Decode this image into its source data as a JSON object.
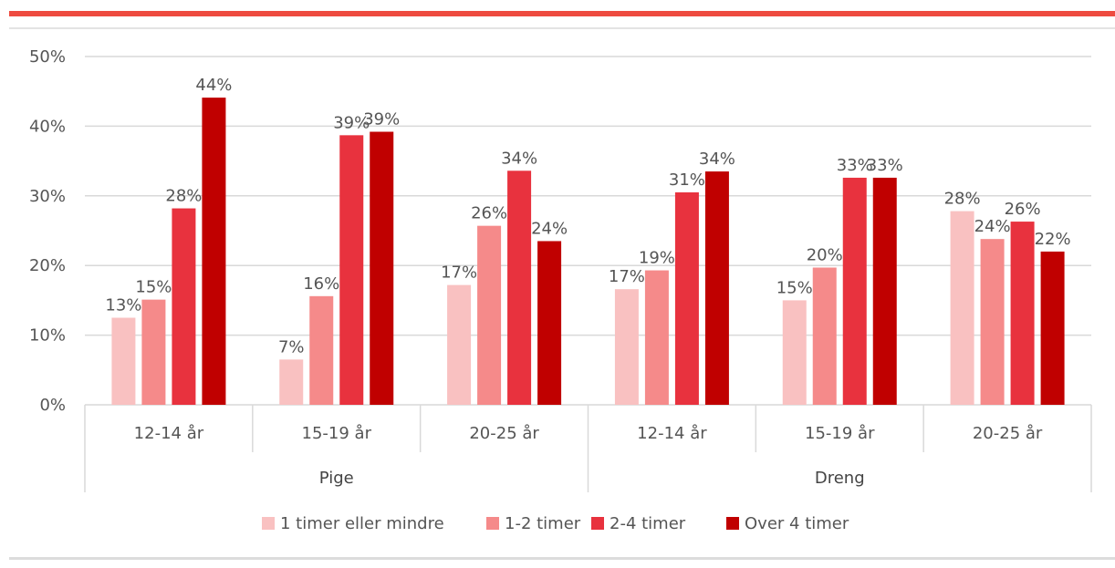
{
  "colors": {
    "accent": "#ee4b40",
    "gridline": "#d9d9d9",
    "series": [
      "#f9c1c1",
      "#f58a8a",
      "#e8323e",
      "#c00000"
    ]
  },
  "chart_data": {
    "type": "bar",
    "title": "",
    "xlabel": "",
    "ylabel": "",
    "ylim": [
      0,
      50
    ],
    "y_ticks": [
      "0%",
      "10%",
      "20%",
      "30%",
      "40%",
      "50%"
    ],
    "y_tick_values": [
      0,
      10,
      20,
      30,
      40,
      50
    ],
    "grid": true,
    "legend_position": "bottom",
    "groups": [
      {
        "label": "Pige",
        "categories": [
          "12-14 år",
          "15-19 år",
          "20-25 år"
        ]
      },
      {
        "label": "Dreng",
        "categories": [
          "12-14 år",
          "15-19 år",
          "20-25 år"
        ]
      }
    ],
    "series": [
      {
        "name": "1 timer eller mindre",
        "values": [
          12.5,
          6.5,
          17.2,
          16.6,
          15.0,
          27.8
        ],
        "labels": [
          "13%",
          "7%",
          "17%",
          "17%",
          "15%",
          "28%"
        ]
      },
      {
        "name": "1-2 timer",
        "values": [
          15.1,
          15.6,
          25.7,
          19.3,
          19.7,
          23.8
        ],
        "labels": [
          "15%",
          "16%",
          "26%",
          "19%",
          "20%",
          "24%"
        ]
      },
      {
        "name": "2-4 timer",
        "values": [
          28.2,
          38.7,
          33.6,
          30.5,
          32.6,
          26.3
        ],
        "labels": [
          "28%",
          "39%",
          "34%",
          "31%",
          "33%",
          "26%"
        ]
      },
      {
        "name": "Over 4 timer",
        "values": [
          44.1,
          39.2,
          23.5,
          33.5,
          32.6,
          22.0
        ],
        "labels": [
          "44%",
          "39%",
          "24%",
          "34%",
          "33%",
          "22%"
        ]
      }
    ]
  }
}
